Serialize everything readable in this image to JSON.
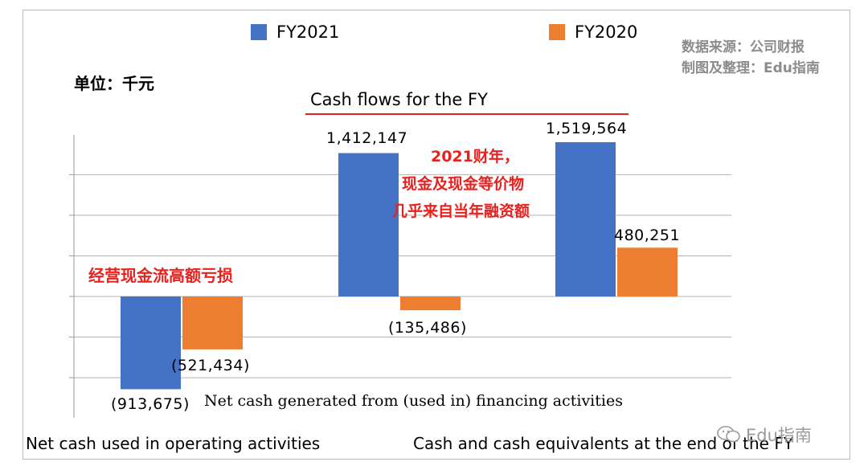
{
  "legend": [
    {
      "name": "FY2021",
      "color": "#4472c4"
    },
    {
      "name": "FY2020",
      "color": "#ed7d31"
    }
  ],
  "source_lines": [
    "数据来源：公司财报",
    "制图及整理：Edu指南"
  ],
  "unit": "单位：千元",
  "chart_data": {
    "type": "bar",
    "title": "",
    "categories": [
      "Net cash used in operating activities",
      "Net cash generated from (used in) financing activities",
      "Cash and cash equivalents at the end of the FY"
    ],
    "series": [
      {
        "name": "FY2021",
        "values": [
          -913675,
          1412147,
          1519564
        ]
      },
      {
        "name": "FY2020",
        "values": [
          -521434,
          -135486,
          480251
        ]
      }
    ],
    "data_labels": {
      "FY2021": [
        "(913,675)",
        "1,412,147",
        "1,519,564"
      ],
      "FY2020": [
        "(521,434)",
        "(135,486)",
        "480,251"
      ]
    },
    "ylim": [
      -1000000,
      2000000
    ],
    "grid": true,
    "legend": "top",
    "annotation_title": "Cash flows for the FY",
    "annotations": [
      "经营现金流高额亏损",
      "2021财年，",
      "现金及现金等价物",
      "几乎来自当年融资额"
    ]
  },
  "watermark": "Edu指南"
}
